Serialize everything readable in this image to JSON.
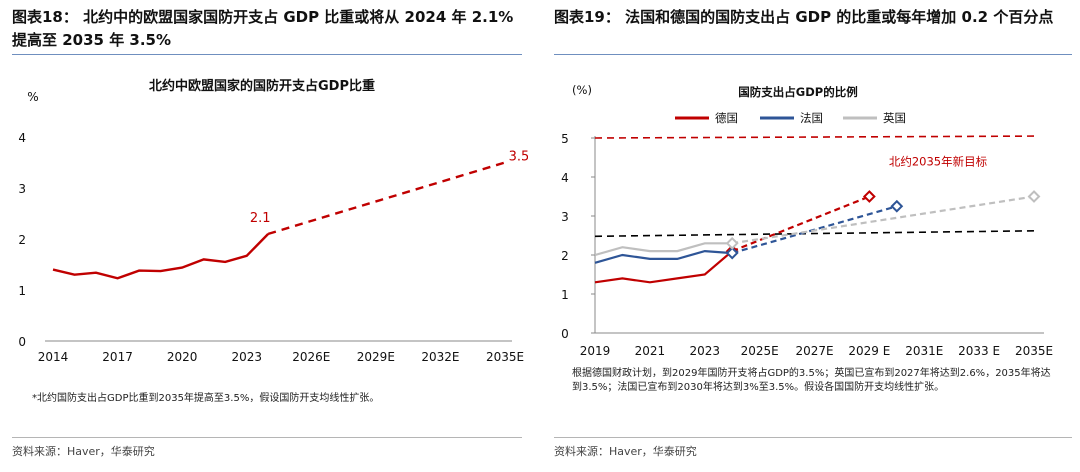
{
  "left": {
    "figure_title": "图表18： 北约中的欧盟国家国防开支占 GDP 比重或将从 2024 年 2.1%提高至 2035 年 3.5%",
    "note": "*北约国防支出占GDP比重到2035年提高至3.5%，假设国防开支均线性扩张。",
    "source": "资料来源：Haver，华泰研究"
  },
  "right": {
    "figure_title": "图表19： 法国和德国的国防支出占 GDP 的比重或每年增加 0.2 个百分点",
    "note": "根据德国财政计划，到2029年国防开支将占GDP的3.5%；英国已宣布到2027年将达到2.6%，2035年将达到3.5%；法国已宣布到2030年将达到3%至3.5%。假设各国国防开支均线性扩张。",
    "source": "资料来源：Haver，华泰研究"
  },
  "chart_data": [
    {
      "type": "line",
      "title": "北约中欧盟国家的国防开支占GDP比重",
      "ylabel": "%",
      "xlabel": "",
      "xlim": [
        2014,
        2035
      ],
      "ylim": [
        0,
        4
      ],
      "yticks": [
        0,
        1,
        2,
        3,
        4
      ],
      "xticks": [
        2014,
        2017,
        2020,
        2023,
        2026,
        2029,
        2032,
        2035
      ],
      "xtick_labels": [
        "2014",
        "2017",
        "2020",
        "2023",
        "2026E",
        "2029E",
        "2032E",
        "2035E"
      ],
      "grid": false,
      "color": "#c00000",
      "series": [
        {
          "style": "solid",
          "x": [
            2014,
            2015,
            2016,
            2017,
            2018,
            2019,
            2020,
            2021,
            2022,
            2023,
            2024
          ],
          "values": [
            1.4,
            1.3,
            1.34,
            1.23,
            1.38,
            1.37,
            1.44,
            1.6,
            1.55,
            1.67,
            2.1
          ]
        },
        {
          "style": "dashed",
          "x": [
            2024,
            2035
          ],
          "values": [
            2.1,
            3.5
          ]
        }
      ],
      "annotations": [
        {
          "x": 2024,
          "y": 2.1,
          "text": "2.1"
        },
        {
          "x": 2035,
          "y": 3.5,
          "text": "3.5"
        }
      ]
    },
    {
      "type": "line",
      "title": "国防支出占GDP的比例",
      "ylabel": "(%)",
      "xlabel": "",
      "xlim": [
        2019,
        2035
      ],
      "ylim": [
        0,
        5
      ],
      "yticks": [
        0,
        1,
        2,
        3,
        4,
        5
      ],
      "xticks": [
        2019,
        2021,
        2023,
        2025,
        2027,
        2029,
        2031,
        2033,
        2035
      ],
      "xtick_labels": [
        "2019",
        "2021",
        "2023",
        "2025E",
        "2027E",
        "2029 E",
        "2031E",
        "2033 E",
        "2035E"
      ],
      "grid": false,
      "legend": "top-center",
      "series": [
        {
          "name": "德国",
          "color": "#c00000",
          "x": [
            2019,
            2020,
            2021,
            2022,
            2023,
            2024
          ],
          "values": [
            1.3,
            1.4,
            1.3,
            1.4,
            1.5,
            2.1
          ],
          "projection": {
            "x": [
              2024,
              2029
            ],
            "values": [
              2.1,
              3.5
            ]
          }
        },
        {
          "name": "法国",
          "color": "#2e5597",
          "x": [
            2019,
            2020,
            2021,
            2022,
            2023,
            2024
          ],
          "values": [
            1.8,
            2.0,
            1.9,
            1.9,
            2.1,
            2.05
          ],
          "projection": {
            "x": [
              2024,
              2030
            ],
            "values": [
              2.05,
              3.25
            ]
          }
        },
        {
          "name": "英国",
          "color": "#bfbfbf",
          "x": [
            2019,
            2020,
            2021,
            2022,
            2023,
            2024
          ],
          "values": [
            2.0,
            2.2,
            2.1,
            2.1,
            2.3,
            2.3
          ],
          "projection": {
            "x": [
              2024,
              2035
            ],
            "values": [
              2.3,
              3.5
            ]
          }
        }
      ],
      "reference_lines": [
        {
          "label": "北约2035年新目标",
          "color": "#c00000",
          "x": [
            2019,
            2035
          ],
          "values": [
            5.0,
            5.05
          ]
        },
        {
          "color": "#000000",
          "x": [
            2019,
            2035
          ],
          "values": [
            2.48,
            2.62
          ]
        }
      ]
    }
  ]
}
